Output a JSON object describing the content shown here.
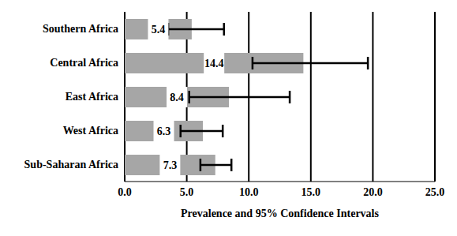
{
  "chart_data": {
    "type": "bar",
    "orientation": "horizontal",
    "categories": [
      "Southern Africa",
      "Central Africa",
      "East Africa",
      "West Africa",
      "Sub-Saharan Africa"
    ],
    "values": [
      5.4,
      14.4,
      8.4,
      6.3,
      7.3
    ],
    "ci_low": [
      3.5,
      10.3,
      5.2,
      4.5,
      6.1
    ],
    "ci_high": [
      8.0,
      19.6,
      13.3,
      7.9,
      8.6
    ],
    "color": "#a6a6a6",
    "xlabel": "Prevalence and 95% Confidence Intervals",
    "xlim": [
      0,
      25
    ],
    "xticks": [
      {
        "value": 0,
        "label": "0.0"
      },
      {
        "value": 5,
        "label": "5.0"
      },
      {
        "value": 10,
        "label": "10.0"
      },
      {
        "value": 15,
        "label": "15.0"
      },
      {
        "value": 20,
        "label": "20.0"
      },
      {
        "value": 25,
        "label": "25.0"
      }
    ],
    "grid": true,
    "data_labels": true
  }
}
